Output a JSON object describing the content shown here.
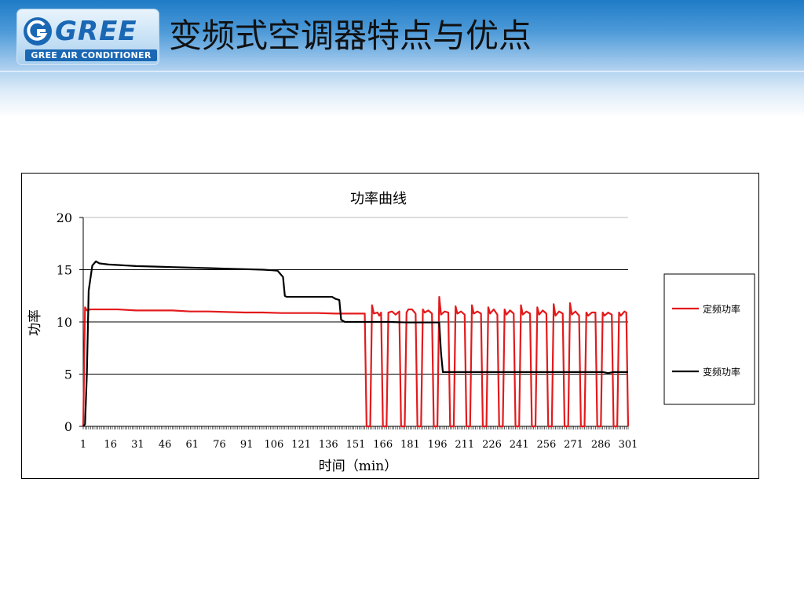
{
  "header": {
    "logo_word": "GREE",
    "logo_subtitle": "GREE AIR CONDITIONER",
    "slide_title": "变频式空调器特点与优点"
  },
  "colors": {
    "fixed_series": "#e31a1c",
    "variable_series": "#000000",
    "header_blue": "#1f7bc6"
  },
  "chart_data": {
    "type": "line",
    "title": "功率曲线",
    "xlabel": "时间（min）",
    "ylabel": "功率",
    "xlim": [
      1,
      301
    ],
    "ylim": [
      0,
      20
    ],
    "x_ticks": [
      1,
      16,
      31,
      46,
      61,
      76,
      91,
      106,
      121,
      136,
      151,
      166,
      181,
      196,
      211,
      226,
      241,
      256,
      271,
      286,
      301
    ],
    "y_ticks": [
      0,
      5,
      10,
      15,
      20
    ],
    "grid": "horizontal",
    "legend_position": "right",
    "series": [
      {
        "name": "定频功率",
        "color": "#e31a1c",
        "points": [
          [
            1,
            0
          ],
          [
            2,
            11.4
          ],
          [
            3,
            11.1
          ],
          [
            5,
            11.2
          ],
          [
            10,
            11.2
          ],
          [
            20,
            11.2
          ],
          [
            30,
            11.1
          ],
          [
            40,
            11.1
          ],
          [
            50,
            11.1
          ],
          [
            60,
            11.0
          ],
          [
            70,
            11.0
          ],
          [
            80,
            10.95
          ],
          [
            90,
            10.9
          ],
          [
            100,
            10.9
          ],
          [
            110,
            10.85
          ],
          [
            120,
            10.85
          ],
          [
            130,
            10.85
          ],
          [
            140,
            10.8
          ],
          [
            150,
            10.8
          ],
          [
            156,
            10.8
          ],
          [
            157,
            0
          ],
          [
            159,
            0
          ],
          [
            160,
            11.6
          ],
          [
            161,
            10.8
          ],
          [
            163,
            10.9
          ],
          [
            164,
            10.6
          ],
          [
            165,
            10.9
          ],
          [
            166,
            0
          ],
          [
            168,
            0
          ],
          [
            169,
            10.9
          ],
          [
            171,
            11.0
          ],
          [
            173,
            10.7
          ],
          [
            175,
            11.0
          ],
          [
            176,
            0
          ],
          [
            178,
            0
          ],
          [
            179,
            10.9
          ],
          [
            180,
            11.2
          ],
          [
            182,
            11.2
          ],
          [
            184,
            10.8
          ],
          [
            185,
            0
          ],
          [
            187,
            0
          ],
          [
            188,
            11.2
          ],
          [
            189,
            10.9
          ],
          [
            191,
            11.1
          ],
          [
            193,
            10.8
          ],
          [
            194,
            0
          ],
          [
            196,
            0
          ],
          [
            197,
            12.4
          ],
          [
            198,
            10.7
          ],
          [
            200,
            11.0
          ],
          [
            202,
            10.9
          ],
          [
            203,
            0
          ],
          [
            205,
            0
          ],
          [
            206,
            11.5
          ],
          [
            207,
            10.8
          ],
          [
            209,
            11.0
          ],
          [
            211,
            10.7
          ],
          [
            212,
            0
          ],
          [
            214,
            0
          ],
          [
            215,
            11.6
          ],
          [
            216,
            10.8
          ],
          [
            218,
            11.0
          ],
          [
            220,
            10.8
          ],
          [
            221,
            0
          ],
          [
            223,
            0
          ],
          [
            224,
            11.4
          ],
          [
            225,
            10.8
          ],
          [
            227,
            11.2
          ],
          [
            229,
            10.7
          ],
          [
            230,
            0
          ],
          [
            232,
            0
          ],
          [
            233,
            11.2
          ],
          [
            234,
            10.7
          ],
          [
            236,
            11.1
          ],
          [
            238,
            10.8
          ],
          [
            239,
            0
          ],
          [
            241,
            0
          ],
          [
            242,
            11.6
          ],
          [
            243,
            10.7
          ],
          [
            245,
            11.0
          ],
          [
            247,
            10.8
          ],
          [
            248,
            0
          ],
          [
            250,
            0
          ],
          [
            251,
            11.4
          ],
          [
            252,
            10.7
          ],
          [
            254,
            11.1
          ],
          [
            256,
            10.8
          ],
          [
            257,
            0
          ],
          [
            259,
            0
          ],
          [
            260,
            11.7
          ],
          [
            261,
            10.6
          ],
          [
            263,
            11.0
          ],
          [
            265,
            10.8
          ],
          [
            266,
            0
          ],
          [
            268,
            0
          ],
          [
            269,
            11.8
          ],
          [
            270,
            10.7
          ],
          [
            272,
            11.0
          ],
          [
            274,
            10.6
          ],
          [
            275,
            0
          ],
          [
            277,
            0
          ],
          [
            278,
            10.9
          ],
          [
            279,
            10.6
          ],
          [
            281,
            10.9
          ],
          [
            283,
            10.9
          ],
          [
            284,
            0
          ],
          [
            286,
            0
          ],
          [
            287,
            10.9
          ],
          [
            288,
            10.6
          ],
          [
            290,
            10.9
          ],
          [
            292,
            10.7
          ],
          [
            293,
            0
          ],
          [
            295,
            0
          ],
          [
            296,
            10.9
          ],
          [
            297,
            10.6
          ],
          [
            299,
            11.0
          ],
          [
            300,
            10.9
          ],
          [
            301,
            0
          ]
        ]
      },
      {
        "name": "变频功率",
        "color": "#000000",
        "points": [
          [
            1,
            0
          ],
          [
            2,
            0.2
          ],
          [
            3,
            5
          ],
          [
            4,
            13
          ],
          [
            6,
            15.4
          ],
          [
            8,
            15.8
          ],
          [
            10,
            15.6
          ],
          [
            15,
            15.5
          ],
          [
            20,
            15.45
          ],
          [
            25,
            15.4
          ],
          [
            30,
            15.35
          ],
          [
            40,
            15.3
          ],
          [
            50,
            15.25
          ],
          [
            60,
            15.2
          ],
          [
            70,
            15.15
          ],
          [
            80,
            15.1
          ],
          [
            90,
            15.05
          ],
          [
            100,
            15.0
          ],
          [
            105,
            14.95
          ],
          [
            108,
            14.9
          ],
          [
            111,
            14.3
          ],
          [
            112,
            12.5
          ],
          [
            113,
            12.4
          ],
          [
            120,
            12.4
          ],
          [
            130,
            12.4
          ],
          [
            138,
            12.4
          ],
          [
            140,
            12.2
          ],
          [
            142,
            12.1
          ],
          [
            143,
            10.2
          ],
          [
            145,
            10.0
          ],
          [
            150,
            10.0
          ],
          [
            160,
            10.0
          ],
          [
            170,
            10.0
          ],
          [
            180,
            9.95
          ],
          [
            190,
            9.95
          ],
          [
            197,
            9.95
          ],
          [
            198,
            7
          ],
          [
            199,
            5.2
          ],
          [
            200,
            5.2
          ],
          [
            210,
            5.2
          ],
          [
            220,
            5.2
          ],
          [
            230,
            5.2
          ],
          [
            240,
            5.2
          ],
          [
            250,
            5.2
          ],
          [
            260,
            5.2
          ],
          [
            270,
            5.2
          ],
          [
            280,
            5.2
          ],
          [
            287,
            5.2
          ],
          [
            290,
            5.1
          ],
          [
            293,
            5.2
          ],
          [
            301,
            5.2
          ]
        ]
      }
    ]
  }
}
